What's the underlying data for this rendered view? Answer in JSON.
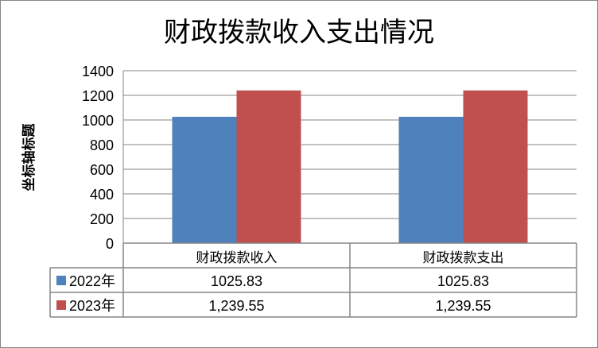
{
  "chart_data": {
    "type": "bar",
    "title": "财政拨款收入支出情况",
    "ylabel": "坐标轴标题",
    "xlabel": "",
    "ylim": [
      0,
      1400
    ],
    "yticks": [
      0,
      200,
      400,
      600,
      800,
      1000,
      1200,
      1400
    ],
    "ytick_labels": [
      "0",
      "200",
      "400",
      "600",
      "800",
      "1000",
      "1200",
      "1400"
    ],
    "grid": true,
    "legend": "data-table",
    "categories": [
      "财政拨款收入",
      "财政拨款支出"
    ],
    "series": [
      {
        "name": "2022年",
        "values": [
          1025.83,
          1025.83
        ],
        "labels": [
          "1025.83",
          "1025.83"
        ],
        "color": "#4F81BD"
      },
      {
        "name": "2023年",
        "values": [
          1239.55,
          1239.55
        ],
        "labels": [
          "1,239.55",
          "1,239.55"
        ],
        "color": "#C0504D"
      }
    ]
  }
}
